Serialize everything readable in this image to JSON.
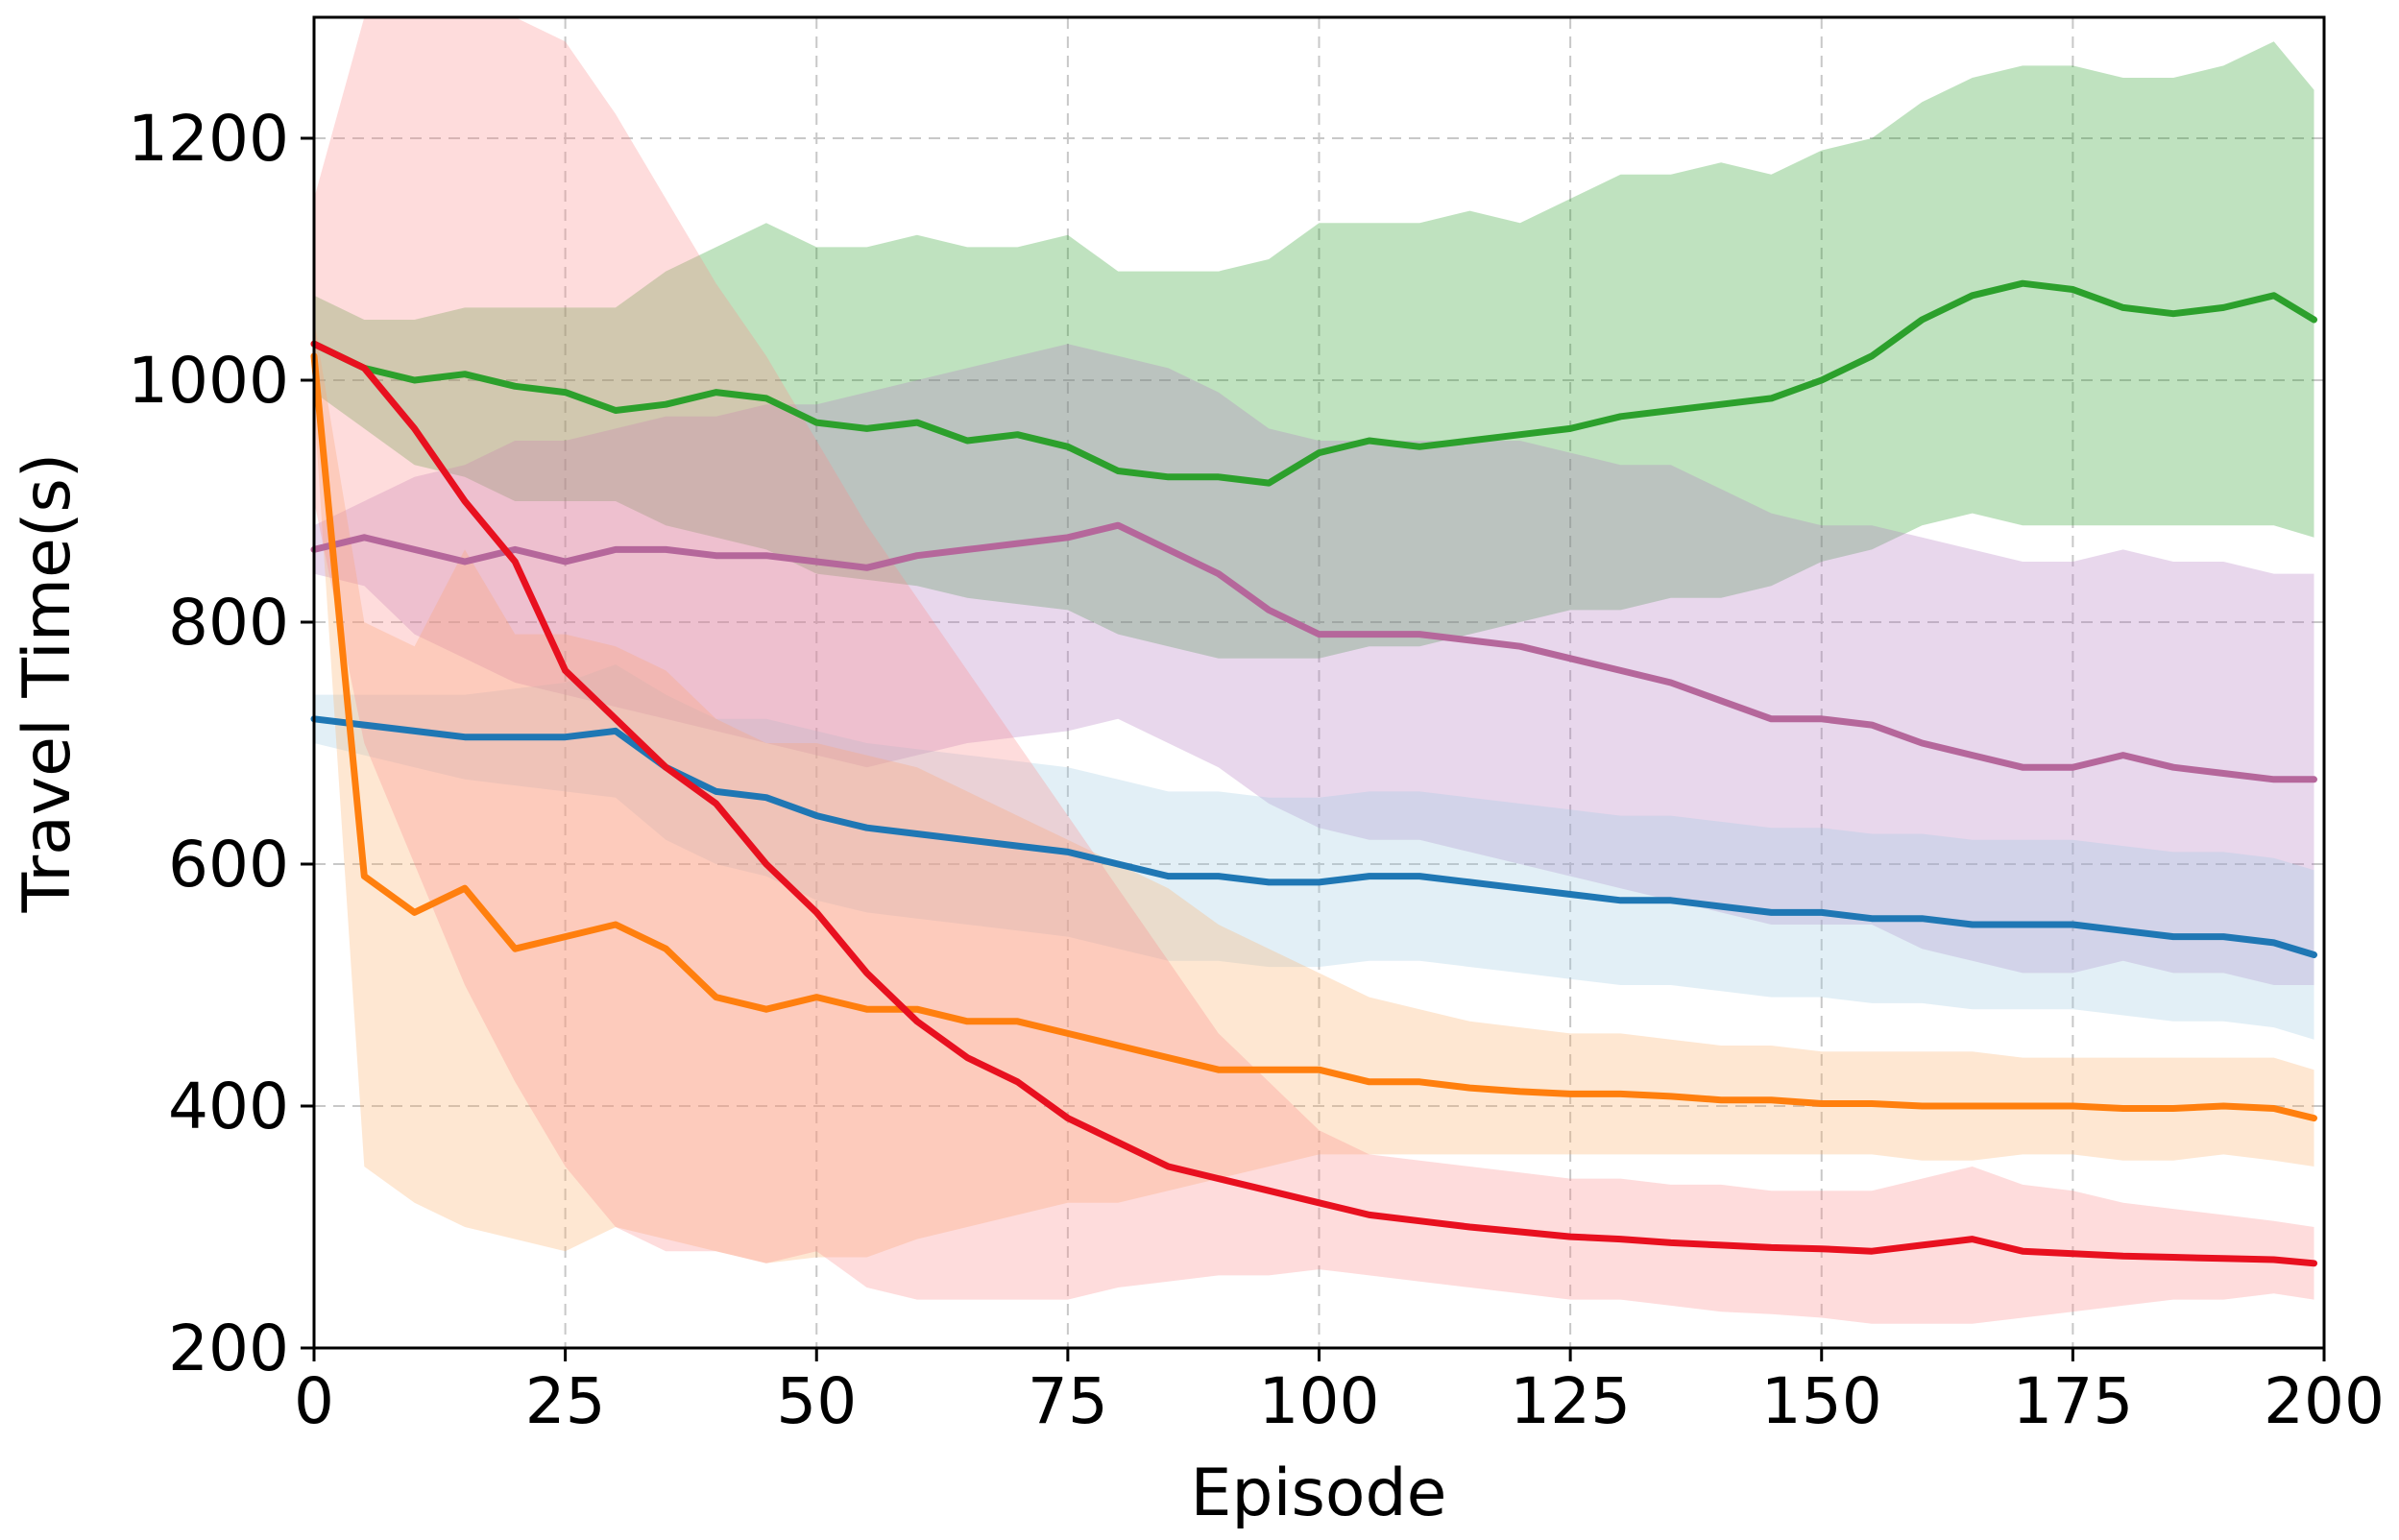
{
  "chart_data": {
    "type": "line",
    "xlabel": "Episode",
    "ylabel": "Travel Time(s)",
    "xlim": [
      0,
      200
    ],
    "ylim": [
      200,
      1300
    ],
    "x_ticks": [
      "0",
      "25",
      "50",
      "75",
      "100",
      "125",
      "150",
      "175",
      "200"
    ],
    "y_ticks": [
      "200",
      "400",
      "600",
      "800",
      "1000",
      "1200"
    ],
    "grid": true,
    "legend": "none",
    "x": [
      0,
      5,
      10,
      15,
      20,
      25,
      30,
      35,
      40,
      45,
      50,
      55,
      60,
      65,
      70,
      75,
      80,
      85,
      90,
      95,
      100,
      105,
      110,
      115,
      120,
      125,
      130,
      135,
      140,
      145,
      150,
      155,
      160,
      165,
      170,
      175,
      180,
      185,
      190,
      195,
      199
    ],
    "series": [
      {
        "color": "#2ca02c",
        "band_color": "#2ca02c",
        "values": [
          1030,
          1010,
          1000,
          1005,
          995,
          990,
          975,
          980,
          990,
          985,
          965,
          960,
          965,
          950,
          955,
          945,
          925,
          920,
          920,
          915,
          940,
          950,
          945,
          950,
          955,
          960,
          970,
          975,
          980,
          985,
          1000,
          1020,
          1050,
          1070,
          1080,
          1075,
          1060,
          1055,
          1060,
          1070,
          1050
        ],
        "lower": [
          990,
          960,
          930,
          920,
          900,
          900,
          900,
          880,
          870,
          860,
          840,
          835,
          830,
          820,
          815,
          810,
          790,
          780,
          770,
          770,
          770,
          780,
          780,
          790,
          800,
          810,
          810,
          820,
          820,
          830,
          850,
          860,
          880,
          890,
          880,
          880,
          880,
          880,
          880,
          880,
          870
        ],
        "upper": [
          1070,
          1050,
          1050,
          1060,
          1060,
          1060,
          1060,
          1090,
          1110,
          1130,
          1110,
          1110,
          1120,
          1110,
          1110,
          1120,
          1090,
          1090,
          1090,
          1100,
          1130,
          1130,
          1130,
          1140,
          1130,
          1150,
          1170,
          1170,
          1180,
          1170,
          1190,
          1200,
          1230,
          1250,
          1260,
          1260,
          1250,
          1250,
          1260,
          1280,
          1240
        ]
      },
      {
        "color": "#b5679b",
        "band_color": "#b27bc1",
        "values": [
          860,
          870,
          860,
          850,
          860,
          850,
          860,
          860,
          855,
          855,
          850,
          845,
          855,
          860,
          865,
          870,
          880,
          860,
          840,
          810,
          790,
          790,
          790,
          785,
          780,
          770,
          760,
          750,
          735,
          720,
          720,
          715,
          700,
          690,
          680,
          680,
          690,
          680,
          675,
          670,
          670
        ],
        "lower": [
          840,
          830,
          790,
          770,
          750,
          740,
          730,
          720,
          710,
          700,
          690,
          680,
          690,
          700,
          705,
          710,
          720,
          700,
          680,
          650,
          630,
          620,
          620,
          610,
          600,
          590,
          580,
          570,
          560,
          550,
          550,
          550,
          530,
          520,
          510,
          510,
          520,
          510,
          510,
          500,
          500
        ],
        "upper": [
          880,
          900,
          920,
          930,
          950,
          950,
          960,
          970,
          970,
          980,
          980,
          990,
          1000,
          1010,
          1020,
          1030,
          1020,
          1010,
          990,
          960,
          950,
          950,
          950,
          950,
          950,
          940,
          930,
          930,
          910,
          890,
          880,
          880,
          870,
          860,
          850,
          850,
          860,
          850,
          850,
          840,
          840
        ]
      },
      {
        "color": "#1f77b4",
        "band_color": "#9ecae1",
        "values": [
          720,
          715,
          710,
          705,
          705,
          705,
          710,
          680,
          660,
          655,
          640,
          630,
          625,
          620,
          615,
          610,
          600,
          590,
          590,
          585,
          585,
          590,
          590,
          585,
          580,
          575,
          570,
          570,
          565,
          560,
          560,
          555,
          555,
          550,
          550,
          550,
          545,
          540,
          540,
          535,
          525
        ],
        "lower": [
          700,
          690,
          680,
          670,
          665,
          660,
          655,
          620,
          600,
          590,
          570,
          560,
          555,
          550,
          545,
          540,
          530,
          520,
          520,
          515,
          515,
          520,
          520,
          515,
          510,
          505,
          500,
          500,
          495,
          490,
          490,
          485,
          485,
          480,
          480,
          480,
          475,
          470,
          470,
          465,
          455
        ],
        "upper": [
          740,
          740,
          740,
          740,
          745,
          750,
          765,
          740,
          720,
          720,
          710,
          700,
          695,
          690,
          685,
          680,
          670,
          660,
          660,
          655,
          655,
          660,
          660,
          655,
          650,
          645,
          640,
          640,
          635,
          630,
          630,
          625,
          625,
          620,
          620,
          620,
          615,
          610,
          610,
          605,
          595
        ]
      },
      {
        "color": "#ff7f0e",
        "band_color": "#fdae6b",
        "values": [
          1020,
          590,
          560,
          580,
          530,
          540,
          550,
          530,
          490,
          480,
          490,
          480,
          480,
          470,
          470,
          460,
          450,
          440,
          430,
          430,
          430,
          420,
          420,
          415,
          412,
          410,
          410,
          408,
          405,
          405,
          402,
          402,
          400,
          400,
          400,
          400,
          398,
          398,
          400,
          398,
          390
        ],
        "lower": [
          980,
          350,
          320,
          300,
          290,
          280,
          300,
          290,
          280,
          270,
          275,
          275,
          290,
          300,
          310,
          320,
          320,
          330,
          340,
          350,
          360,
          360,
          360,
          360,
          360,
          360,
          360,
          360,
          360,
          360,
          360,
          360,
          355,
          355,
          360,
          360,
          355,
          355,
          360,
          355,
          350
        ],
        "upper": [
          1050,
          800,
          780,
          860,
          790,
          790,
          780,
          760,
          720,
          700,
          700,
          690,
          680,
          660,
          640,
          620,
          600,
          580,
          550,
          530,
          510,
          490,
          480,
          470,
          465,
          460,
          460,
          455,
          450,
          450,
          445,
          445,
          445,
          445,
          440,
          440,
          440,
          440,
          440,
          440,
          430
        ]
      },
      {
        "color": "#e8101f",
        "band_color": "#fb8a8a",
        "values": [
          1030,
          1010,
          960,
          900,
          850,
          760,
          720,
          680,
          650,
          600,
          560,
          510,
          470,
          440,
          420,
          390,
          370,
          350,
          340,
          330,
          320,
          310,
          305,
          300,
          296,
          292,
          290,
          287,
          285,
          283,
          282,
          280,
          285,
          290,
          280,
          278,
          276,
          275,
          274,
          273,
          270
        ],
        "lower": [
          900,
          700,
          600,
          500,
          420,
          350,
          300,
          280,
          280,
          270,
          280,
          250,
          240,
          240,
          240,
          240,
          250,
          255,
          260,
          260,
          265,
          260,
          255,
          250,
          245,
          240,
          240,
          235,
          230,
          228,
          225,
          220,
          220,
          220,
          225,
          230,
          235,
          240,
          240,
          245,
          240
        ],
        "upper": [
          1150,
          1300,
          1300,
          1300,
          1300,
          1280,
          1220,
          1150,
          1080,
          1020,
          950,
          880,
          820,
          760,
          700,
          640,
          580,
          520,
          460,
          420,
          380,
          360,
          355,
          350,
          345,
          340,
          340,
          335,
          335,
          330,
          330,
          330,
          340,
          350,
          335,
          330,
          320,
          315,
          310,
          305,
          300
        ]
      }
    ]
  }
}
